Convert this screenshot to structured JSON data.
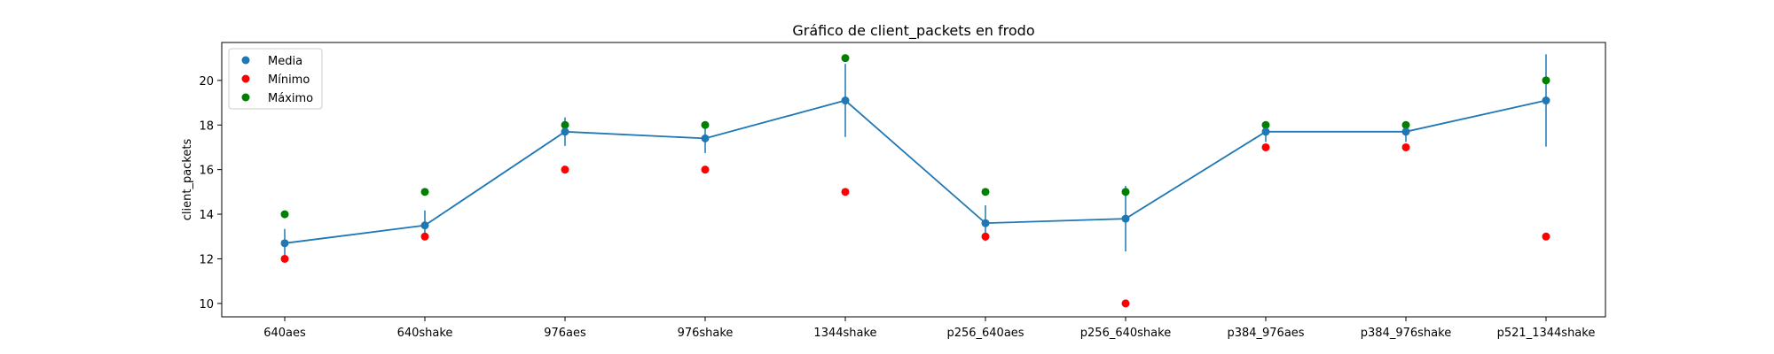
{
  "chart_data": {
    "type": "line",
    "title": "Gráfico de client_packets en frodo",
    "xlabel": "",
    "ylabel": "client_packets",
    "categories": [
      "640aes",
      "640shake",
      "976aes",
      "976shake",
      "1344shake",
      "p256_640aes",
      "p256_640shake",
      "p384_976aes",
      "p384_976shake",
      "p521_1344shake"
    ],
    "ylim": [
      9.4,
      21.7
    ],
    "yticks": [
      10,
      12,
      14,
      16,
      18,
      20
    ],
    "legend_position": "top-left",
    "series": [
      {
        "name": "Media",
        "color": "#1f77b4",
        "values": [
          12.7,
          13.5,
          17.7,
          17.4,
          19.1,
          13.6,
          13.8,
          17.7,
          17.7,
          19.1
        ],
        "error": [
          0.64,
          0.67,
          0.64,
          0.66,
          1.64,
          0.8,
          1.47,
          0.46,
          0.46,
          2.07
        ]
      },
      {
        "name": "Mínimo",
        "color": "#ff0000",
        "values": [
          12,
          13,
          16,
          16,
          15,
          13,
          10,
          17,
          17,
          13
        ]
      },
      {
        "name": "Máximo",
        "color": "#008000",
        "values": [
          14,
          15,
          18,
          18,
          21,
          15,
          15,
          18,
          18,
          20
        ]
      }
    ]
  }
}
